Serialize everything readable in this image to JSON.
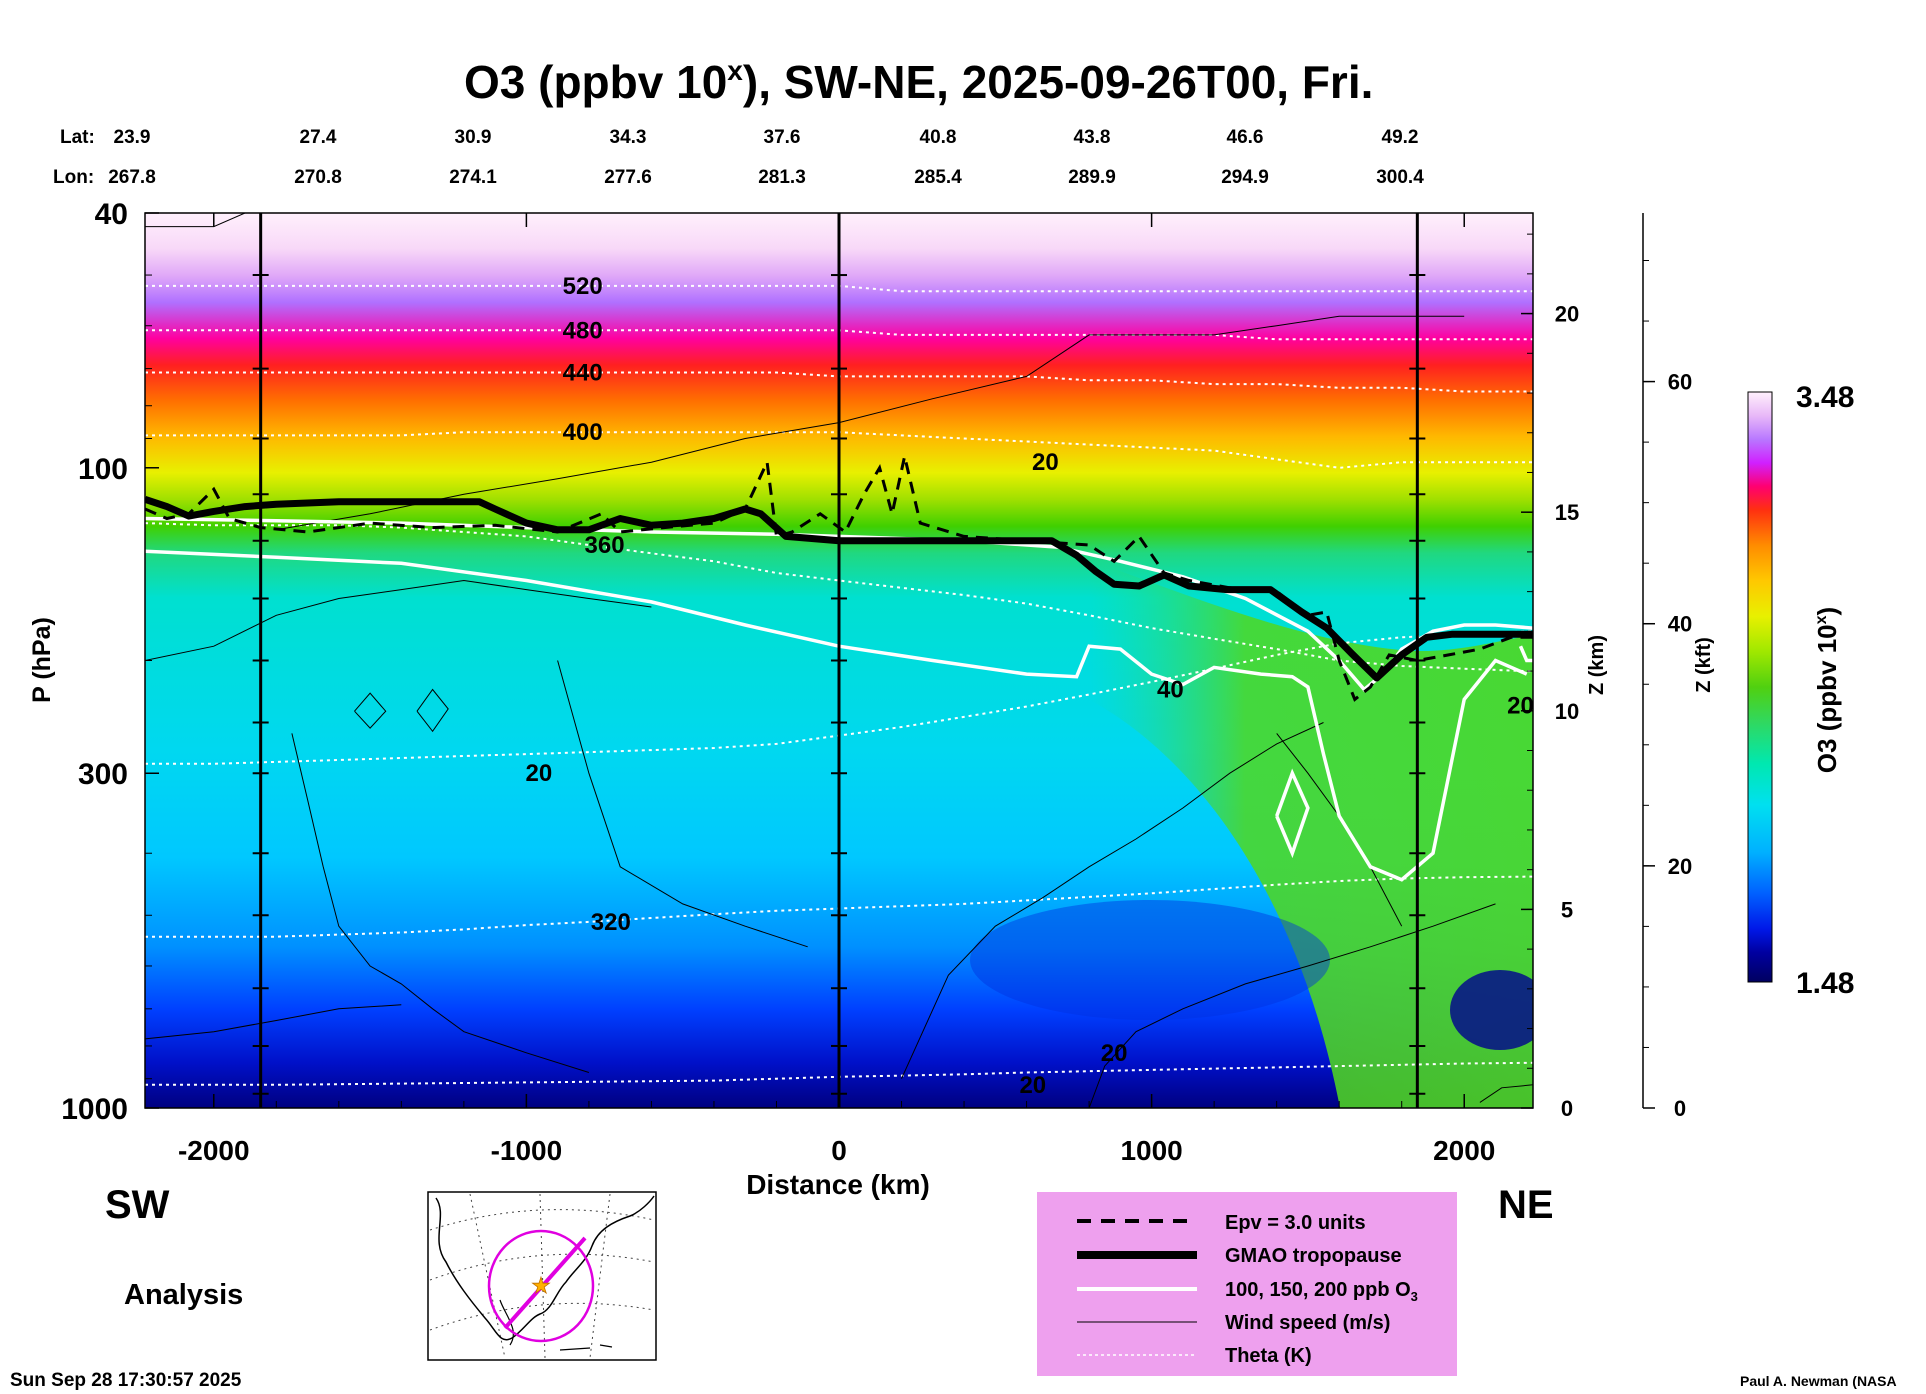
{
  "chart_data": {
    "type": "heatmap",
    "title": "O3 (ppbv 10",
    "title_sup": "x",
    "title_rest": "), SW-NE, 2025-09-26T00, Fri.",
    "lat_label": "Lat:",
    "lon_label": "Lon:",
    "lats": [
      "23.9",
      "27.4",
      "30.9",
      "34.3",
      "37.6",
      "40.8",
      "43.8",
      "46.6",
      "49.2"
    ],
    "lons": [
      "267.8",
      "270.8",
      "274.1",
      "277.6",
      "281.3",
      "285.4",
      "289.9",
      "294.9",
      "300.4"
    ],
    "xlabel": "Distance (km)",
    "xlim": [
      -2220,
      2220
    ],
    "xticks": [
      -2000,
      -1000,
      0,
      1000,
      2000
    ],
    "xtick_labels": [
      "-2000",
      "-1000",
      "0",
      "1000",
      "2000"
    ],
    "ylabel": "P (hPa)",
    "ylim": [
      1000,
      40
    ],
    "yticks": [
      40,
      100,
      300,
      1000
    ],
    "ytick_labels": [
      "40",
      "100",
      "300",
      "1000"
    ],
    "z_km_label": "Z (km)",
    "z_km_ticks": [
      0,
      5,
      10,
      15,
      20
    ],
    "z_kft_label": "Z (kft)",
    "z_kft_ticks": [
      0,
      20,
      40,
      60
    ],
    "colorbar": {
      "label": "O3 (ppbv 10",
      "label_sup": "x",
      "label_end": ")",
      "max_label": "3.48",
      "min_label": "1.48",
      "min": 1.48,
      "max": 3.48
    },
    "tropopause_hpa": [
      [
        -2220,
        112
      ],
      [
        -2150,
        115
      ],
      [
        -2080,
        119
      ],
      [
        -2000,
        117
      ],
      [
        -1900,
        115
      ],
      [
        -1800,
        114
      ],
      [
        -1600,
        113
      ],
      [
        -1400,
        113
      ],
      [
        -1150,
        113
      ],
      [
        -1100,
        116
      ],
      [
        -1000,
        122
      ],
      [
        -900,
        125
      ],
      [
        -800,
        125
      ],
      [
        -700,
        120
      ],
      [
        -600,
        123
      ],
      [
        -500,
        122
      ],
      [
        -400,
        120
      ],
      [
        -300,
        116
      ],
      [
        -250,
        118
      ],
      [
        -170,
        128
      ],
      [
        0,
        130
      ],
      [
        200,
        130
      ],
      [
        400,
        130
      ],
      [
        560,
        130
      ],
      [
        680,
        130
      ],
      [
        760,
        137
      ],
      [
        820,
        145
      ],
      [
        880,
        152
      ],
      [
        960,
        153
      ],
      [
        1040,
        147
      ],
      [
        1120,
        153
      ],
      [
        1240,
        155
      ],
      [
        1380,
        155
      ],
      [
        1480,
        168
      ],
      [
        1560,
        178
      ],
      [
        1640,
        195
      ],
      [
        1720,
        213
      ],
      [
        1800,
        196
      ],
      [
        1880,
        184
      ],
      [
        1960,
        182
      ],
      [
        2080,
        182
      ],
      [
        2220,
        182
      ]
    ],
    "theta_levels": [
      {
        "label": "520",
        "p": [
          52,
          52,
          52,
          52,
          52,
          52,
          52,
          52,
          52,
          52,
          52,
          52,
          53,
          53,
          53,
          53,
          53,
          53,
          53,
          53,
          53,
          53,
          53
        ]
      },
      {
        "label": "480",
        "p": [
          61,
          61,
          61,
          61,
          61,
          61,
          61,
          61,
          61,
          61,
          61,
          61,
          62,
          62,
          62,
          62,
          62,
          62,
          63,
          63,
          63,
          63,
          63
        ]
      },
      {
        "label": "440",
        "p": [
          71,
          71,
          71,
          71,
          71,
          71,
          71,
          71,
          71,
          71,
          71,
          72,
          72,
          72,
          72,
          73,
          73,
          74,
          74,
          75,
          75,
          76,
          76
        ]
      },
      {
        "label": "400",
        "p": [
          89,
          89,
          89,
          89,
          89,
          88,
          88,
          88,
          88,
          88,
          88,
          88,
          89,
          90,
          91,
          92,
          93,
          94,
          97,
          100,
          98,
          98,
          98
        ]
      },
      {
        "label": "360",
        "p": [
          122,
          123,
          123,
          123,
          124,
          126,
          128,
          132,
          136,
          140,
          146,
          150,
          154,
          158,
          163,
          170,
          178,
          185,
          192,
          200,
          204,
          206,
          208
        ]
      },
      {
        "label": "320",
        "p": [
          540,
          540,
          540,
          536,
          532,
          526,
          518,
          512,
          505,
          498,
          492,
          488,
          484,
          480,
          474,
          468,
          462,
          455,
          448,
          442,
          438,
          436,
          435
        ]
      },
      {
        "label": "",
        "p": [
          290,
          290,
          288,
          286,
          284,
          282,
          280,
          278,
          276,
          274,
          270,
          262,
          254,
          245,
          236,
          226,
          216,
          206,
          196,
          188,
          184,
          182,
          180
        ]
      },
      {
        "label": "",
        "p": [
          920,
          920,
          920,
          918,
          916,
          914,
          912,
          910,
          908,
          906,
          900,
          894,
          890,
          886,
          880,
          876,
          872,
          868,
          864,
          860,
          856,
          852,
          850
        ]
      }
    ],
    "theta_x": [
      -2220,
      -2000,
      -1800,
      -1600,
      -1400,
      -1200,
      -1000,
      -800,
      -600,
      -400,
      -200,
      0,
      200,
      400,
      600,
      800,
      1000,
      1200,
      1400,
      1600,
      1800,
      2000,
      2220
    ],
    "theta_label_x": [
      -820,
      -820,
      -820,
      -820,
      -750,
      -730,
      null,
      null
    ],
    "contour_labels": [
      {
        "text": "20",
        "x": 660,
        "p": 98,
        "color": "black"
      },
      {
        "text": "40",
        "x": 1060,
        "p": 222,
        "color": "black"
      },
      {
        "text": "20",
        "x": -960,
        "p": 300,
        "color": "black"
      },
      {
        "text": "20",
        "x": 620,
        "p": 920,
        "color": "black"
      },
      {
        "text": "20",
        "x": 880,
        "p": 820,
        "color": "black"
      },
      {
        "text": "20",
        "x": 2180,
        "p": 235,
        "color": "white"
      }
    ],
    "section_markers_km": [
      -1850,
      0,
      1850
    ]
  },
  "page": {
    "dir_left": "SW",
    "dir_right": "NE",
    "mode": "Analysis",
    "timestamp": "Sun Sep 28 17:30:57 2025",
    "credit": "Paul A. Newman (NASA"
  },
  "legend": {
    "items": [
      {
        "label": "Epv = 3.0 units"
      },
      {
        "label": "GMAO tropopause"
      },
      {
        "label": "100, 150, 200 ppb O",
        "sub": "3"
      },
      {
        "label": "Wind speed (m/s)"
      },
      {
        "label": "Theta (K)"
      }
    ],
    "colors": {
      "box": "#eea0ee",
      "theta": "#ffffff",
      "tropopause": "#000000"
    }
  },
  "colors": {
    "scale": [
      "#000060",
      "#0000a0",
      "#0010e0",
      "#0058ff",
      "#00a8ff",
      "#00d8ff",
      "#00e8e0",
      "#00e8b0",
      "#20e080",
      "#40d020",
      "#80e000",
      "#c0f000",
      "#f0f000",
      "#ffd000",
      "#ffa000",
      "#ff7000",
      "#ff3000",
      "#ff0040",
      "#ff00c0",
      "#c040ff",
      "#b878ff",
      "#e0a8f8",
      "#f8d8f8",
      "#fff0fc"
    ]
  }
}
